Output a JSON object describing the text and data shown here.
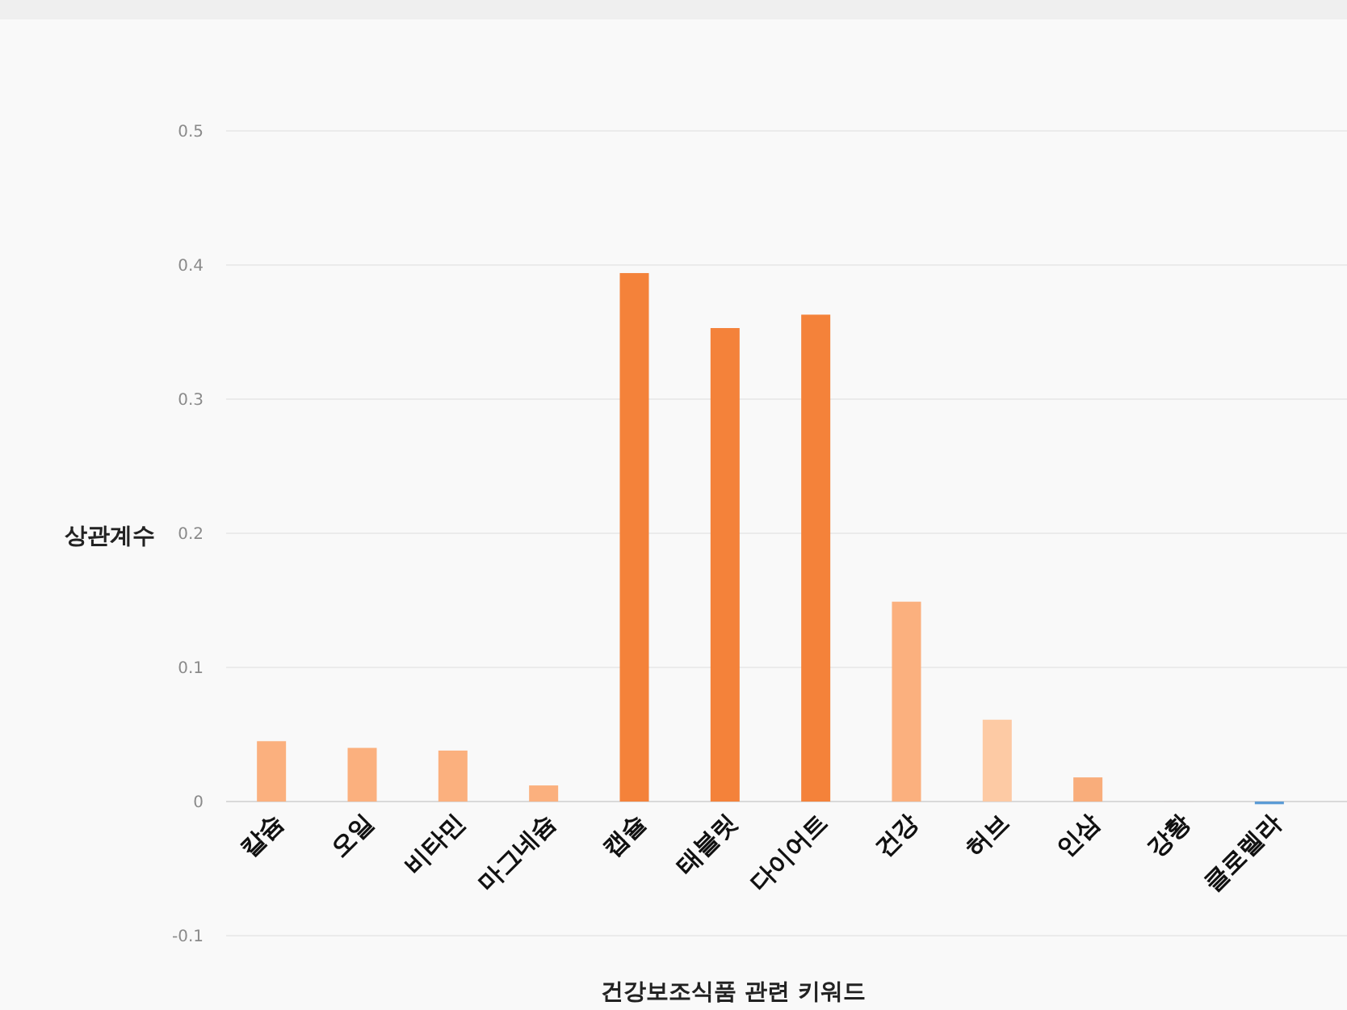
{
  "chart_data": {
    "type": "bar",
    "xlabel": "건강보조식품 관련 키워드",
    "ylabel": "상관계수",
    "categories": [
      "칼슘",
      "오일",
      "비타민",
      "마그네슘",
      "캡슐",
      "태블릿",
      "다이어트",
      "건강",
      "허브",
      "인삼",
      "강황",
      "클로렐라"
    ],
    "values": [
      0.045,
      0.04,
      0.038,
      0.012,
      0.394,
      0.353,
      0.363,
      0.149,
      0.061,
      0.018,
      0,
      -0.002
    ],
    "colors": [
      "#fbb07e",
      "#fbb07e",
      "#fbb07e",
      "#fbb07e",
      "#f4823a",
      "#f4823a",
      "#f4823a",
      "#fbb07e",
      "#fdcaa4",
      "#f9ad7b",
      "#fbb07e",
      "#5b9bd5"
    ],
    "ylim": [
      -0.1,
      0.5
    ],
    "yticks": [
      -0.1,
      0,
      0.1,
      0.2,
      0.3,
      0.4,
      0.5
    ],
    "grid": "y"
  }
}
